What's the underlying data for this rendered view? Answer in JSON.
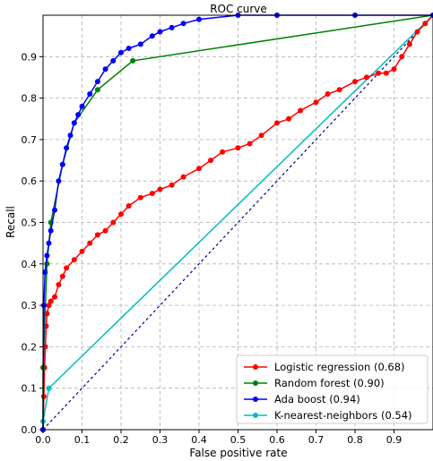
{
  "chart_data": {
    "type": "line",
    "title": "ROC curve",
    "xlabel": "False positive rate",
    "ylabel": "Recall",
    "xlim": [
      0,
      1
    ],
    "ylim": [
      0,
      1
    ],
    "x_ticks": [
      0.0,
      0.1,
      0.2,
      0.3,
      0.4,
      0.5,
      0.6,
      0.7,
      0.8,
      0.9
    ],
    "y_ticks": [
      0.0,
      0.1,
      0.2,
      0.3,
      0.4,
      0.5,
      0.6,
      0.7,
      0.8,
      0.9
    ],
    "grid": true,
    "legend_position": "lower-right",
    "series": [
      {
        "name": "Logistic regression (0.68)",
        "color": "#ff0000",
        "x": [
          0.0,
          0.002,
          0.004,
          0.006,
          0.008,
          0.01,
          0.015,
          0.02,
          0.03,
          0.04,
          0.05,
          0.06,
          0.08,
          0.1,
          0.12,
          0.14,
          0.16,
          0.18,
          0.2,
          0.22,
          0.25,
          0.28,
          0.3,
          0.33,
          0.36,
          0.4,
          0.43,
          0.46,
          0.5,
          0.53,
          0.56,
          0.6,
          0.63,
          0.66,
          0.7,
          0.73,
          0.76,
          0.8,
          0.83,
          0.86,
          0.88,
          0.9,
          0.92,
          0.94,
          0.96,
          0.98,
          1.0
        ],
        "y": [
          0.0,
          0.08,
          0.15,
          0.2,
          0.25,
          0.28,
          0.3,
          0.31,
          0.32,
          0.35,
          0.37,
          0.39,
          0.41,
          0.43,
          0.45,
          0.47,
          0.48,
          0.5,
          0.52,
          0.54,
          0.56,
          0.57,
          0.58,
          0.59,
          0.61,
          0.63,
          0.65,
          0.67,
          0.68,
          0.69,
          0.71,
          0.74,
          0.75,
          0.77,
          0.79,
          0.81,
          0.82,
          0.84,
          0.85,
          0.86,
          0.86,
          0.87,
          0.9,
          0.93,
          0.96,
          0.98,
          1.0
        ]
      },
      {
        "name": "Random forest (0.90)",
        "color": "#008000",
        "x": [
          0.0,
          0.0,
          0.01,
          0.02,
          0.05,
          0.08,
          0.14,
          0.23,
          1.0
        ],
        "y": [
          0.0,
          0.15,
          0.4,
          0.5,
          0.64,
          0.74,
          0.82,
          0.89,
          1.0
        ]
      },
      {
        "name": "Ada boost (0.94)",
        "color": "#0000ff",
        "x": [
          0.0,
          0.002,
          0.005,
          0.01,
          0.015,
          0.02,
          0.03,
          0.04,
          0.05,
          0.06,
          0.07,
          0.08,
          0.09,
          0.1,
          0.12,
          0.14,
          0.16,
          0.18,
          0.2,
          0.22,
          0.25,
          0.28,
          0.3,
          0.33,
          0.36,
          0.4,
          0.5,
          0.6,
          0.8,
          1.0
        ],
        "y": [
          0.0,
          0.3,
          0.38,
          0.42,
          0.45,
          0.48,
          0.53,
          0.6,
          0.64,
          0.68,
          0.71,
          0.74,
          0.76,
          0.78,
          0.81,
          0.84,
          0.87,
          0.89,
          0.91,
          0.92,
          0.93,
          0.95,
          0.96,
          0.97,
          0.98,
          0.99,
          1.0,
          1.0,
          1.0,
          1.0
        ]
      },
      {
        "name": "K-nearest-neighbors (0.54)",
        "color": "#00bfbf",
        "x": [
          0.0,
          0.0,
          0.015,
          1.0
        ],
        "y": [
          0.0,
          0.02,
          0.1,
          1.0
        ]
      }
    ],
    "reference_line": {
      "x": [
        0,
        1
      ],
      "y": [
        0,
        1
      ],
      "color": "#00008b",
      "style": "dashed"
    }
  }
}
